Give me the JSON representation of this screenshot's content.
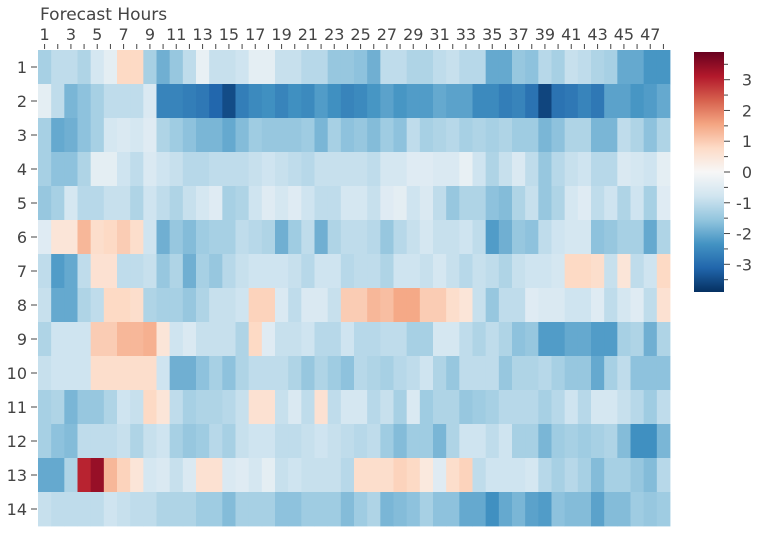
{
  "chart_data": {
    "type": "heatmap",
    "title": "",
    "xlabel": "Forecast Hours",
    "ylabel": "",
    "x": [
      1,
      2,
      3,
      4,
      5,
      6,
      7,
      8,
      9,
      10,
      11,
      12,
      13,
      14,
      15,
      16,
      17,
      18,
      19,
      20,
      21,
      22,
      23,
      24,
      25,
      26,
      27,
      28,
      29,
      30,
      31,
      32,
      33,
      34,
      35,
      36,
      37,
      38,
      39,
      40,
      41,
      42,
      43,
      44,
      45,
      46,
      47,
      48
    ],
    "x_tick_labels": [
      "1",
      "3",
      "5",
      "7",
      "9",
      "11",
      "13",
      "15",
      "17",
      "19",
      "21",
      "23",
      "25",
      "27",
      "29",
      "31",
      "33",
      "35",
      "37",
      "39",
      "41",
      "43",
      "45",
      "47"
    ],
    "y": [
      1,
      2,
      3,
      4,
      5,
      6,
      7,
      8,
      9,
      10,
      11,
      12,
      13,
      14
    ],
    "y_tick_labels": [
      "1",
      "2",
      "3",
      "4",
      "5",
      "6",
      "7",
      "8",
      "9",
      "10",
      "11",
      "12",
      "13",
      "14"
    ],
    "zlim": [
      -3.9,
      3.9
    ],
    "colorscale": "RdBu (reversed)",
    "colorbar_ticks": [
      "3",
      "2",
      "1",
      "0",
      "-1",
      "-2",
      "-3"
    ],
    "colorbar_tick_values": [
      3,
      2,
      1,
      0,
      -1,
      -2,
      -3
    ],
    "z": [
      [
        -1.3,
        -1.0,
        -1.0,
        -1.2,
        -0.7,
        -0.4,
        0.8,
        0.8,
        -1.3,
        -1.9,
        -1.5,
        -1.0,
        -0.3,
        -0.9,
        -0.9,
        -0.8,
        -0.4,
        -0.4,
        -0.9,
        -0.9,
        -1.1,
        -1.1,
        -1.5,
        -1.5,
        -1.6,
        -1.9,
        -1.0,
        -1.0,
        -1.2,
        -1.2,
        -1.0,
        -0.9,
        -1.1,
        -1.1,
        -2.0,
        -2.0,
        -1.5,
        -1.6,
        -1.1,
        -1.3,
        -0.9,
        -1.0,
        -1.2,
        -1.3,
        -2.0,
        -2.0,
        -2.3,
        -2.3
      ],
      [
        -0.4,
        -1.0,
        -1.8,
        -1.6,
        -1.3,
        -1.0,
        -1.0,
        -1.0,
        -0.6,
        -2.6,
        -2.6,
        -2.7,
        -2.8,
        -3.1,
        -3.5,
        -2.7,
        -2.5,
        -2.4,
        -2.6,
        -2.4,
        -2.5,
        -2.2,
        -2.4,
        -2.6,
        -2.5,
        -2.3,
        -2.1,
        -2.3,
        -2.2,
        -2.2,
        -2.0,
        -2.1,
        -2.1,
        -2.5,
        -2.5,
        -2.7,
        -2.6,
        -2.9,
        -3.6,
        -2.9,
        -2.8,
        -2.6,
        -2.8,
        -2.1,
        -2.1,
        -2.3,
        -2.2,
        -2.0
      ],
      [
        -1.3,
        -2.0,
        -1.9,
        -1.6,
        -1.3,
        -0.7,
        -0.6,
        -0.7,
        -0.5,
        -1.2,
        -1.4,
        -1.6,
        -1.8,
        -1.8,
        -2.0,
        -1.7,
        -1.4,
        -1.5,
        -1.5,
        -1.5,
        -1.4,
        -1.8,
        -1.3,
        -1.6,
        -1.5,
        -1.7,
        -1.4,
        -1.6,
        -1.0,
        -1.3,
        -1.2,
        -1.1,
        -1.3,
        -1.2,
        -1.3,
        -1.2,
        -1.4,
        -1.4,
        -1.8,
        -1.6,
        -1.2,
        -1.2,
        -1.8,
        -1.8,
        -1.0,
        -1.2,
        -1.6,
        -1.2
      ],
      [
        -1.3,
        -1.6,
        -1.6,
        -1.2,
        -0.4,
        -0.4,
        -0.8,
        -1.0,
        -0.6,
        -0.8,
        -0.9,
        -1.1,
        -1.1,
        -1.0,
        -1.0,
        -1.0,
        -0.9,
        -0.8,
        -0.9,
        -1.0,
        -1.1,
        -0.9,
        -0.9,
        -0.9,
        -0.9,
        -1.0,
        -0.7,
        -0.7,
        -0.5,
        -0.5,
        -0.6,
        -0.6,
        -0.3,
        -0.8,
        -1.2,
        -0.9,
        -0.6,
        -1.0,
        -1.5,
        -1.1,
        -0.9,
        -0.8,
        -1.1,
        -1.1,
        -0.6,
        -0.7,
        -0.8,
        -0.4
      ],
      [
        -1.5,
        -1.3,
        -0.7,
        -1.1,
        -1.1,
        -0.9,
        -0.9,
        -1.2,
        -0.8,
        -1.0,
        -1.2,
        -0.9,
        -0.7,
        -0.5,
        -1.3,
        -1.2,
        -0.8,
        -0.5,
        -0.7,
        -0.5,
        -0.8,
        -1.0,
        -1.0,
        -0.7,
        -0.7,
        -0.9,
        -0.5,
        -0.4,
        -0.8,
        -0.6,
        -1.0,
        -1.5,
        -1.2,
        -1.2,
        -1.6,
        -1.7,
        -1.2,
        -0.9,
        -1.5,
        -1.2,
        -0.7,
        -0.5,
        -1.0,
        -0.8,
        -1.2,
        -0.8,
        -1.3,
        -0.5
      ],
      [
        -0.5,
        0.5,
        0.5,
        1.3,
        0.7,
        0.8,
        1.0,
        0.7,
        -0.8,
        -1.9,
        -1.5,
        -1.7,
        -1.4,
        -1.3,
        -1.3,
        -1.0,
        -1.1,
        -1.2,
        -1.9,
        -1.4,
        -1.0,
        -1.9,
        -1.2,
        -1.0,
        -1.0,
        -1.1,
        -1.5,
        -1.1,
        -0.9,
        -0.7,
        -0.9,
        -0.9,
        -0.8,
        -1.0,
        -2.2,
        -1.9,
        -1.5,
        -1.6,
        -1.0,
        -0.8,
        -0.7,
        -0.7,
        -1.6,
        -1.5,
        -1.3,
        -1.3,
        -2.0,
        -1.2
      ],
      [
        -1.0,
        -2.2,
        -2.0,
        -1.0,
        0.6,
        0.6,
        -1.0,
        -1.0,
        -0.9,
        -1.5,
        -1.2,
        -1.9,
        -1.3,
        -1.5,
        -1.1,
        -0.9,
        -0.8,
        -0.8,
        -0.8,
        -0.9,
        -1.1,
        -0.8,
        -0.8,
        -1.1,
        -1.0,
        -1.0,
        -1.2,
        -0.8,
        -0.8,
        -0.9,
        -0.7,
        -0.9,
        -1.1,
        -0.9,
        -1.0,
        -1.2,
        -0.9,
        -0.8,
        -0.8,
        -0.7,
        0.8,
        0.8,
        0.7,
        -0.9,
        0.5,
        -1.0,
        -0.8,
        0.8
      ],
      [
        -0.9,
        -2.0,
        -2.0,
        -1.2,
        -1.0,
        0.8,
        0.8,
        0.7,
        -1.2,
        -1.3,
        -1.3,
        -1.5,
        -1.2,
        -0.9,
        -0.9,
        -0.8,
        0.9,
        0.9,
        -0.6,
        -1.0,
        -0.6,
        -0.6,
        -0.9,
        1.0,
        1.0,
        1.3,
        1.2,
        1.5,
        1.5,
        1.0,
        1.0,
        0.7,
        0.5,
        -0.9,
        -1.5,
        -1.0,
        -1.0,
        -0.5,
        -0.6,
        -0.6,
        -0.8,
        -0.8,
        -0.5,
        -1.0,
        -0.7,
        -0.5,
        -1.0,
        0.6
      ],
      [
        -1.2,
        -0.8,
        -0.8,
        -0.8,
        1.0,
        1.0,
        1.3,
        1.3,
        1.4,
        0.5,
        -0.8,
        -0.6,
        -0.9,
        -0.9,
        -0.9,
        -1.2,
        0.8,
        -0.5,
        -0.9,
        -0.9,
        -0.8,
        -1.1,
        -1.1,
        -0.8,
        -1.1,
        -1.1,
        -1.0,
        -1.0,
        -1.3,
        -1.3,
        -0.7,
        -0.7,
        -1.0,
        -1.2,
        -1.0,
        -1.2,
        -1.6,
        -1.5,
        -2.2,
        -2.2,
        -2.0,
        -2.0,
        -2.2,
        -2.2,
        -1.3,
        -1.2,
        -1.9,
        -1.2
      ],
      [
        -0.9,
        -0.8,
        -0.8,
        -0.8,
        0.7,
        0.7,
        0.7,
        0.7,
        0.7,
        -0.8,
        -1.9,
        -1.9,
        -1.6,
        -1.3,
        -1.6,
        -1.2,
        -1.0,
        -1.0,
        -1.0,
        -1.2,
        -1.5,
        -1.2,
        -1.4,
        -1.6,
        -1.1,
        -1.2,
        -1.3,
        -1.1,
        -1.0,
        -0.8,
        -1.2,
        -1.5,
        -1.0,
        -1.0,
        -1.0,
        -1.5,
        -1.2,
        -1.2,
        -1.1,
        -1.3,
        -1.5,
        -1.5,
        -2.0,
        -1.3,
        -1.0,
        -1.6,
        -1.6,
        -1.6
      ],
      [
        -1.3,
        -1.2,
        -1.8,
        -1.5,
        -1.5,
        -1.2,
        -0.8,
        -0.9,
        0.8,
        0.5,
        -1.0,
        -1.3,
        -1.2,
        -1.2,
        -1.1,
        -0.9,
        0.6,
        0.6,
        -0.9,
        -0.6,
        -1.0,
        0.6,
        -1.0,
        -0.7,
        -0.7,
        -1.1,
        -0.9,
        -1.3,
        -0.6,
        -1.4,
        -1.2,
        -1.2,
        -1.5,
        -1.4,
        -1.3,
        -1.1,
        -1.1,
        -1.1,
        -1.3,
        -1.1,
        -0.8,
        -1.1,
        -0.7,
        -0.7,
        -0.9,
        -1.1,
        -1.4,
        -1.0
      ],
      [
        -1.3,
        -1.6,
        -1.7,
        -1.0,
        -1.0,
        -1.0,
        -0.9,
        -1.2,
        -0.9,
        -0.8,
        -1.3,
        -1.5,
        -1.4,
        -1.1,
        -1.3,
        -0.9,
        -0.8,
        -0.8,
        -1.0,
        -1.0,
        -0.9,
        -0.8,
        -0.9,
        -1.0,
        -1.1,
        -1.0,
        -1.4,
        -1.7,
        -1.4,
        -1.4,
        -1.8,
        -1.2,
        -0.8,
        -0.8,
        -1.0,
        -0.8,
        -1.3,
        -1.3,
        -1.8,
        -1.4,
        -1.3,
        -1.4,
        -1.3,
        -1.2,
        -1.7,
        -2.4,
        -2.4,
        -1.8
      ],
      [
        -2.0,
        -2.0,
        -1.2,
        3.0,
        3.4,
        1.3,
        0.9,
        0.5,
        -0.7,
        -0.6,
        -0.9,
        -0.6,
        0.6,
        0.6,
        -0.6,
        -0.5,
        -0.7,
        -0.4,
        -0.9,
        -0.8,
        -0.9,
        -0.9,
        -0.9,
        -1.1,
        0.7,
        0.7,
        0.7,
        0.9,
        0.8,
        0.4,
        -0.5,
        0.7,
        0.9,
        -1.0,
        -0.8,
        -0.8,
        -0.8,
        -0.7,
        -1.1,
        -1.3,
        -1.1,
        -1.3,
        -1.7,
        -1.3,
        -1.3,
        -1.5,
        -1.7,
        -1.1
      ],
      [
        -0.9,
        -1.0,
        -1.0,
        -1.0,
        -1.0,
        -0.8,
        -0.9,
        -1.0,
        -1.0,
        -1.2,
        -1.2,
        -1.2,
        -1.4,
        -1.4,
        -1.7,
        -1.3,
        -1.3,
        -1.3,
        -1.6,
        -1.6,
        -1.4,
        -1.4,
        -1.4,
        -1.7,
        -1.4,
        -1.2,
        -1.8,
        -1.7,
        -1.6,
        -1.3,
        -1.6,
        -1.6,
        -2.0,
        -2.0,
        -2.4,
        -2.0,
        -1.8,
        -2.1,
        -2.2,
        -1.6,
        -1.7,
        -1.7,
        -2.1,
        -1.7,
        -1.7,
        -1.4,
        -1.5,
        -1.4
      ]
    ]
  }
}
